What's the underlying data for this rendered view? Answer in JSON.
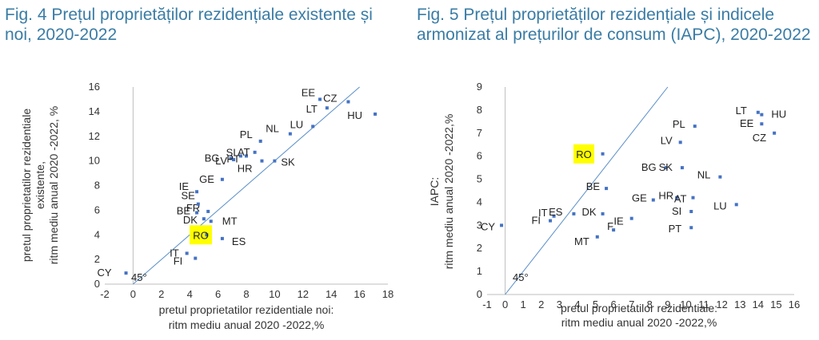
{
  "titles": {
    "fig4": "Fig. 4 Prețul proprietăților rezidențiale existente și noi, 2020-2022",
    "fig5": "Fig. 5 Prețul proprietăților rezidențiale și indicele armonizat al prețurilor de consum (IAPC), 2020-2022"
  },
  "colors": {
    "title": "#3a7ca5",
    "point": "#4472c4",
    "line": "#5b8fc9",
    "highlight": "#ffff00"
  },
  "chart_data": [
    {
      "type": "scatter",
      "xlabel_lines": [
        "pretul proprietatilor rezidentiale noi:",
        "ritm mediu anual 2020 -2022,%"
      ],
      "ylabel_lines": [
        "pretul proprietatilor rezidentiale",
        "existente,",
        "ritm mediu anual 2020 -2022, %"
      ],
      "xlim": [
        -2,
        18
      ],
      "ylim": [
        0,
        16
      ],
      "xticks": [
        -2,
        0,
        2,
        4,
        6,
        8,
        10,
        12,
        14,
        16,
        18
      ],
      "yticks": [
        0,
        2,
        4,
        6,
        8,
        10,
        12,
        14,
        16
      ],
      "diagonal_label": "45°",
      "highlight_label": "RO",
      "points": [
        {
          "label": "CY",
          "x": -0.5,
          "y": 0.9
        },
        {
          "label": "IT",
          "x": 3.8,
          "y": 2.5
        },
        {
          "label": "FI",
          "x": 4.4,
          "y": 2.1
        },
        {
          "label": "ES",
          "x": 6.3,
          "y": 3.7
        },
        {
          "label": "RO",
          "x": 5.2,
          "y": 4.0
        },
        {
          "label": "MT",
          "x": 5.5,
          "y": 5.1
        },
        {
          "label": "DK",
          "x": 5.0,
          "y": 5.3
        },
        {
          "label": "BE",
          "x": 4.5,
          "y": 5.8
        },
        {
          "label": "FR",
          "x": 5.3,
          "y": 5.9
        },
        {
          "label": "SE",
          "x": 4.6,
          "y": 6.5
        },
        {
          "label": "IE",
          "x": 4.5,
          "y": 7.5
        },
        {
          "label": "GE",
          "x": 6.3,
          "y": 8.5
        },
        {
          "label": "BG",
          "x": 6.9,
          "y": 10.2
        },
        {
          "label": "LV",
          "x": 7.1,
          "y": 10.1
        },
        {
          "label": "SI",
          "x": 7.6,
          "y": 10.4
        },
        {
          "label": "PT",
          "x": 8.0,
          "y": 10.4
        },
        {
          "label": "AT",
          "x": 8.6,
          "y": 10.7
        },
        {
          "label": "PL",
          "x": 9.0,
          "y": 11.6
        },
        {
          "label": "HR",
          "x": 9.1,
          "y": 10.0
        },
        {
          "label": "SK",
          "x": 10.0,
          "y": 10.0
        },
        {
          "label": "NL",
          "x": 11.1,
          "y": 12.2
        },
        {
          "label": "LU",
          "x": 12.7,
          "y": 12.8
        },
        {
          "label": "LT",
          "x": 13.7,
          "y": 14.3
        },
        {
          "label": "EE",
          "x": 13.2,
          "y": 15.0
        },
        {
          "label": "CZ",
          "x": 15.2,
          "y": 14.8
        },
        {
          "label": "HU",
          "x": 17.1,
          "y": 13.8
        }
      ]
    },
    {
      "type": "scatter",
      "xlabel_lines": [
        "pretul proprietatilor rezidentiale:",
        "ritm mediu anual 2020 -2022,%"
      ],
      "ylabel_lines": [
        "IAPC:",
        "ritm mediu anual  2020 -2022,%"
      ],
      "xlim": [
        -1,
        16
      ],
      "ylim": [
        0,
        9
      ],
      "xticks": [
        -1,
        0,
        1,
        2,
        3,
        4,
        5,
        6,
        7,
        8,
        9,
        10,
        11,
        12,
        13,
        14,
        15,
        16
      ],
      "yticks": [
        0,
        1,
        2,
        3,
        4,
        5,
        6,
        7,
        8,
        9
      ],
      "diagonal_label": "45°",
      "highlight_label": "RO",
      "points": [
        {
          "label": "CY",
          "x": -0.2,
          "y": 3.0
        },
        {
          "label": "FI",
          "x": 2.5,
          "y": 3.2
        },
        {
          "label": "IT",
          "x": 2.7,
          "y": 3.4
        },
        {
          "label": "ES",
          "x": 3.8,
          "y": 3.5
        },
        {
          "label": "DK",
          "x": 5.4,
          "y": 3.5
        },
        {
          "label": "MT",
          "x": 5.1,
          "y": 2.5
        },
        {
          "label": "F",
          "x": 6.0,
          "y": 2.8
        },
        {
          "label": "IE",
          "x": 7.0,
          "y": 3.3
        },
        {
          "label": "BE",
          "x": 5.6,
          "y": 4.6
        },
        {
          "label": "GE",
          "x": 8.2,
          "y": 4.1
        },
        {
          "label": "HR",
          "x": 9.5,
          "y": 4.2
        },
        {
          "label": "AT",
          "x": 10.4,
          "y": 4.2
        },
        {
          "label": "SI",
          "x": 10.3,
          "y": 3.6
        },
        {
          "label": "PT",
          "x": 10.3,
          "y": 2.9
        },
        {
          "label": "LU",
          "x": 12.8,
          "y": 3.9
        },
        {
          "label": "BG",
          "x": 8.9,
          "y": 5.5
        },
        {
          "label": "SK",
          "x": 9.8,
          "y": 5.5
        },
        {
          "label": "NL",
          "x": 11.9,
          "y": 5.1
        },
        {
          "label": "RO",
          "x": 5.4,
          "y": 6.1
        },
        {
          "label": "LV",
          "x": 9.7,
          "y": 6.6
        },
        {
          "label": "PL",
          "x": 10.5,
          "y": 7.3
        },
        {
          "label": "LT",
          "x": 14.0,
          "y": 7.9
        },
        {
          "label": "HU",
          "x": 14.2,
          "y": 7.8
        },
        {
          "label": "EE",
          "x": 14.2,
          "y": 7.4
        },
        {
          "label": "CZ",
          "x": 14.9,
          "y": 7.0
        }
      ]
    }
  ]
}
